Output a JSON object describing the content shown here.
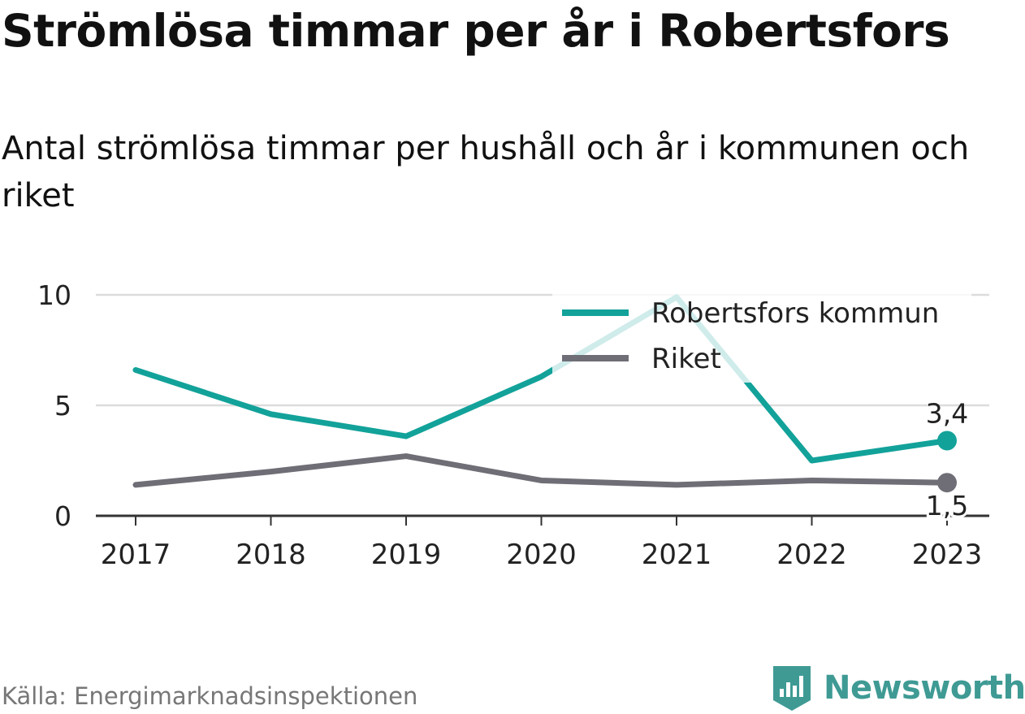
{
  "title": "Strömlösa timmar per år i Robertsfors",
  "subtitle": "Antal strömlösa timmar per hushåll och år i kommunen och riket",
  "source": "Källa: Energimarknadsinspektionen",
  "brand": {
    "name": "Newsworthy",
    "icon": "newsworthy-logo-icon",
    "color": "#3f9a94"
  },
  "chart_data": {
    "type": "line",
    "x": [
      "2017",
      "2018",
      "2019",
      "2020",
      "2021",
      "2022",
      "2023"
    ],
    "ylim": [
      0,
      10
    ],
    "yticks": [
      0,
      5,
      10
    ],
    "grid": true,
    "legend_position": "top-right",
    "series": [
      {
        "name": "Robertsfors kommun",
        "color": "#12a29a",
        "values": [
          6.6,
          4.6,
          3.6,
          6.3,
          9.9,
          2.5,
          3.4
        ],
        "end_label": "3,4"
      },
      {
        "name": "Riket",
        "color": "#6f6e76",
        "values": [
          1.4,
          2.0,
          2.7,
          1.6,
          1.4,
          1.6,
          1.5
        ],
        "end_label": "1,5"
      }
    ]
  }
}
